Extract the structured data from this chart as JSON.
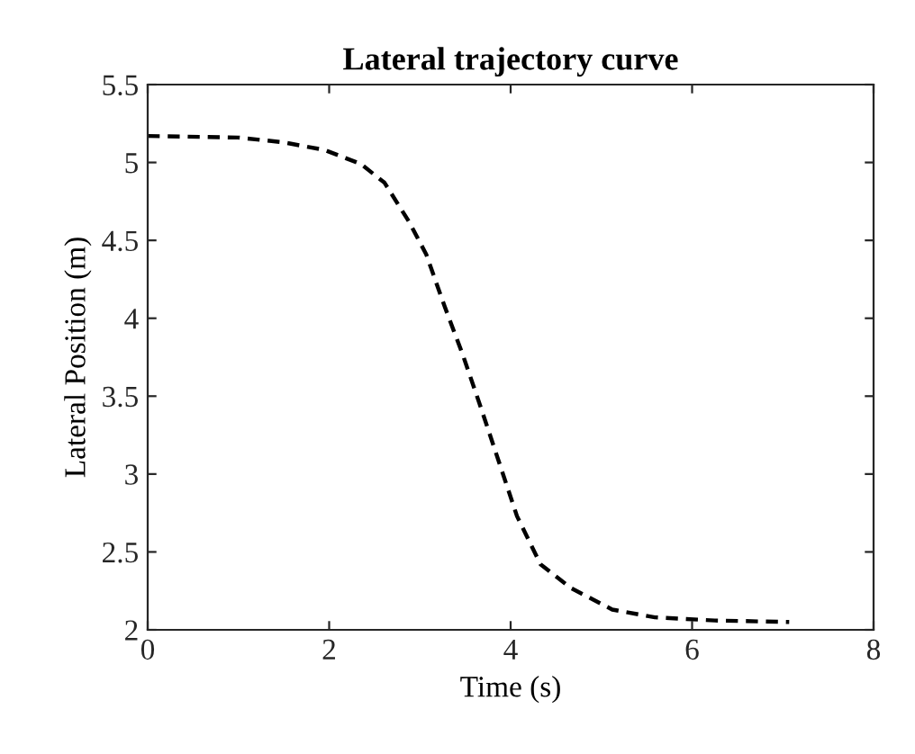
{
  "chart_data": {
    "type": "line",
    "title": "Lateral trajectory curve",
    "xlabel": "Time (s)",
    "ylabel": "Lateral Position (m)",
    "series": [
      {
        "color": "#000000",
        "x": [
          0,
          1.0,
          1.49,
          1.95,
          2.35,
          2.61,
          2.88,
          3.07,
          3.27,
          3.47,
          3.67,
          3.87,
          4.07,
          4.33,
          4.66,
          5.12,
          5.59,
          6.25,
          7.07
        ],
        "values": [
          5.17,
          5.16,
          5.13,
          5.08,
          4.99,
          4.87,
          4.62,
          4.41,
          4.08,
          3.77,
          3.43,
          3.08,
          2.73,
          2.42,
          2.27,
          2.13,
          2.08,
          2.06,
          2.05
        ]
      }
    ],
    "line_style": "dashed",
    "marker": "none",
    "grid": false,
    "xlim": [
      0,
      8
    ],
    "xticks": [
      0,
      2,
      4,
      6,
      8
    ],
    "ylim": [
      2,
      5.5
    ],
    "yticks": [
      2,
      2.5,
      3,
      3.5,
      4,
      4.5,
      5,
      5.5
    ]
  }
}
